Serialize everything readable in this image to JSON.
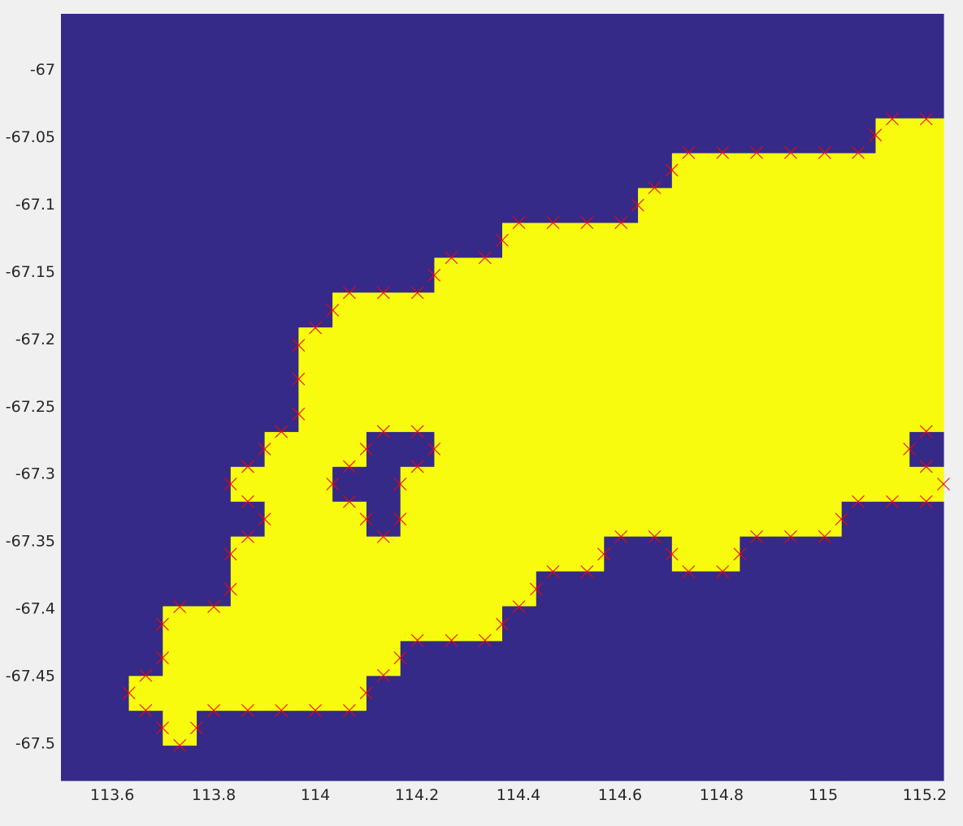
{
  "chart_data": {
    "type": "heatmap",
    "title": "",
    "xlabel": "",
    "ylabel": "",
    "xlim": [
      113.499,
      115.237
    ],
    "ylim": [
      -67.528,
      -66.959
    ],
    "grid": false,
    "legend": "none",
    "x_ticks": [
      113.6,
      113.8,
      114.0,
      114.2,
      114.4,
      114.6,
      114.8,
      115.0,
      115.2
    ],
    "x_tick_labels": [
      "113.6",
      "113.8",
      "114",
      "114.2",
      "114.4",
      "114.6",
      "114.8",
      "115",
      "115.2"
    ],
    "y_ticks": [
      -67.0,
      -67.05,
      -67.1,
      -67.15,
      -67.2,
      -67.25,
      -67.3,
      -67.35,
      -67.4,
      -67.45,
      -67.5
    ],
    "y_tick_labels": [
      "-67",
      "-67.05",
      "-67.1",
      "-67.15",
      "-67.2",
      "-67.25",
      "-67.3",
      "-67.35",
      "-67.4",
      "-67.45",
      "-67.5"
    ],
    "mask_rows_top_to_bottom": [
      "00000000000000000000000000",
      "00000000000000000000000000",
      "00000000000000000000000000",
      "00000000000000000000000011",
      "00000000000000000011111111",
      "00000000000000000111111111",
      "00000000000001111111111111",
      "00000000000111111111111111",
      "00000000111111111111111111",
      "00000001111111111111111111",
      "00000001111111111111111111",
      "00000001111111111111111111",
      "00000011100111111111111110",
      "00000111001111111111111111",
      "00000011101111111111111000",
      "00000111111111110011000000",
      "00000111111111000000000000",
      "00011111111110000000000000",
      "00011111110000000000000000",
      "00111111100000000000000000",
      "00010000000000000000000000",
      "00000000000000000000000000"
    ],
    "colors": {
      "value_0": "#352a87",
      "value_1": "#f9fb0e",
      "marker": "#ff0000",
      "background": "#f0f0f0"
    },
    "markers": {
      "style": "x",
      "points": [
        [
          115.136,
          -67.037
        ],
        [
          115.203,
          -67.037
        ],
        [
          115.103,
          -67.049
        ],
        [
          114.735,
          -67.062
        ],
        [
          114.802,
          -67.062
        ],
        [
          114.869,
          -67.062
        ],
        [
          114.936,
          -67.062
        ],
        [
          115.003,
          -67.062
        ],
        [
          115.069,
          -67.062
        ],
        [
          114.702,
          -67.075
        ],
        [
          114.668,
          -67.088
        ],
        [
          114.635,
          -67.101
        ],
        [
          114.401,
          -67.114
        ],
        [
          114.468,
          -67.114
        ],
        [
          114.535,
          -67.114
        ],
        [
          114.602,
          -67.114
        ],
        [
          114.368,
          -67.127
        ],
        [
          114.268,
          -67.14
        ],
        [
          114.334,
          -67.14
        ],
        [
          114.234,
          -67.153
        ],
        [
          114.067,
          -67.166
        ],
        [
          114.134,
          -67.166
        ],
        [
          114.201,
          -67.166
        ],
        [
          114.034,
          -67.179
        ],
        [
          114.0,
          -67.192
        ],
        [
          113.967,
          -67.205
        ],
        [
          113.967,
          -67.23
        ],
        [
          113.967,
          -67.256
        ],
        [
          113.933,
          -67.269
        ],
        [
          113.9,
          -67.282
        ],
        [
          114.134,
          -67.269
        ],
        [
          114.201,
          -67.269
        ],
        [
          114.1,
          -67.282
        ],
        [
          114.234,
          -67.282
        ],
        [
          114.201,
          -67.295
        ],
        [
          115.203,
          -67.269
        ],
        [
          115.17,
          -67.282
        ],
        [
          115.203,
          -67.295
        ],
        [
          113.867,
          -67.295
        ],
        [
          113.833,
          -67.308
        ],
        [
          113.867,
          -67.321
        ],
        [
          114.067,
          -67.295
        ],
        [
          114.034,
          -67.308
        ],
        [
          114.067,
          -67.321
        ],
        [
          114.167,
          -67.308
        ],
        [
          115.237,
          -67.308
        ],
        [
          115.069,
          -67.321
        ],
        [
          115.136,
          -67.321
        ],
        [
          115.203,
          -67.321
        ],
        [
          113.9,
          -67.334
        ],
        [
          113.867,
          -67.347
        ],
        [
          114.1,
          -67.334
        ],
        [
          114.167,
          -67.334
        ],
        [
          114.134,
          -67.347
        ],
        [
          115.036,
          -67.334
        ],
        [
          114.869,
          -67.347
        ],
        [
          114.936,
          -67.347
        ],
        [
          115.003,
          -67.347
        ],
        [
          114.602,
          -67.347
        ],
        [
          114.668,
          -67.347
        ],
        [
          113.833,
          -67.36
        ],
        [
          114.568,
          -67.36
        ],
        [
          114.702,
          -67.36
        ],
        [
          114.836,
          -67.36
        ],
        [
          114.735,
          -67.373
        ],
        [
          114.802,
          -67.373
        ],
        [
          114.468,
          -67.373
        ],
        [
          114.535,
          -67.373
        ],
        [
          113.833,
          -67.386
        ],
        [
          114.435,
          -67.386
        ],
        [
          114.401,
          -67.399
        ],
        [
          113.733,
          -67.399
        ],
        [
          113.8,
          -67.399
        ],
        [
          113.699,
          -67.412
        ],
        [
          114.368,
          -67.412
        ],
        [
          114.201,
          -67.424
        ],
        [
          114.268,
          -67.424
        ],
        [
          114.334,
          -67.424
        ],
        [
          113.699,
          -67.437
        ],
        [
          114.167,
          -67.437
        ],
        [
          114.134,
          -67.45
        ],
        [
          113.666,
          -67.45
        ],
        [
          113.633,
          -67.463
        ],
        [
          114.1,
          -67.463
        ],
        [
          113.666,
          -67.476
        ],
        [
          113.8,
          -67.476
        ],
        [
          113.867,
          -67.476
        ],
        [
          113.933,
          -67.476
        ],
        [
          114.0,
          -67.476
        ],
        [
          114.067,
          -67.476
        ],
        [
          113.699,
          -67.489
        ],
        [
          113.766,
          -67.489
        ],
        [
          113.733,
          -67.502
        ]
      ]
    }
  }
}
